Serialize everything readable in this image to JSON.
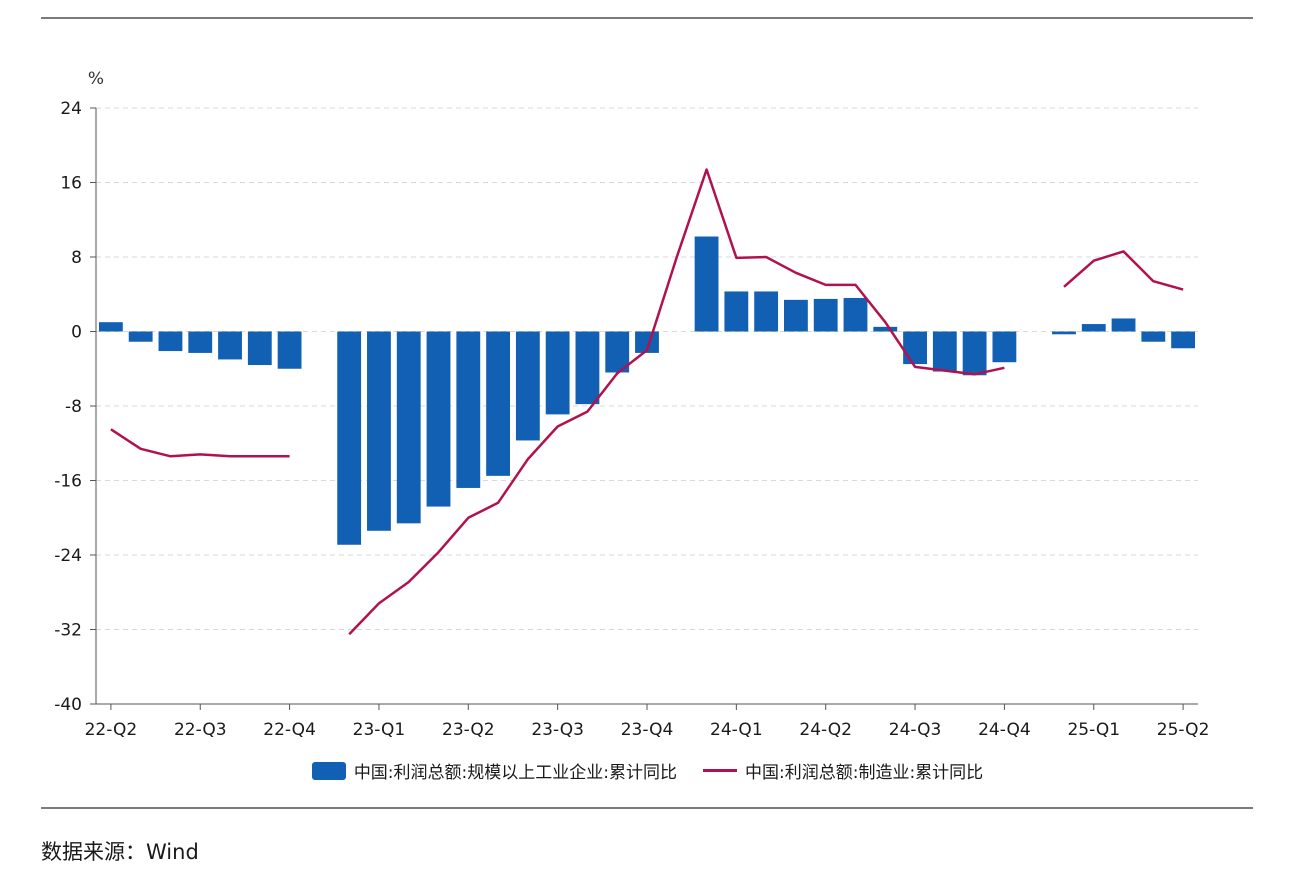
{
  "chart_data": {
    "type": "bar",
    "unit": "%",
    "ylim": [
      -40,
      24
    ],
    "y_ticks": [
      24,
      16,
      8,
      0,
      -8,
      -16,
      -24,
      -32,
      -40
    ],
    "x_tick_labels": [
      "22-Q2",
      "22-Q3",
      "22-Q4",
      "23-Q1",
      "23-Q2",
      "23-Q3",
      "23-Q4",
      "24-Q1",
      "24-Q2",
      "24-Q3",
      "24-Q4",
      "25-Q1",
      "25-Q2"
    ],
    "grid": true,
    "legend_position": "bottom",
    "series": [
      {
        "name": "中国:利润总额:规模以上工业企业:累计同比",
        "kind": "bar",
        "color": "#1260B3",
        "values": [
          1.0,
          -1.1,
          -2.1,
          -2.3,
          -3.0,
          -3.6,
          -4.0,
          null,
          -22.9,
          -21.4,
          -20.6,
          -18.8,
          -16.8,
          -15.5,
          -11.7,
          -8.9,
          -7.8,
          -4.4,
          -2.3,
          null,
          10.2,
          4.3,
          4.3,
          3.4,
          3.5,
          3.6,
          0.5,
          -3.5,
          -4.3,
          -4.7,
          -3.3,
          null,
          -0.3,
          0.8,
          1.4,
          -1.1,
          -1.8
        ]
      },
      {
        "name": "中国:利润总额:制造业:累计同比",
        "kind": "line",
        "color": "#B0124F",
        "values": [
          -10.5,
          -12.6,
          -13.4,
          -13.2,
          -13.4,
          -13.4,
          -13.4,
          null,
          -32.5,
          -29.2,
          -26.9,
          -23.7,
          -20.0,
          -18.4,
          -13.7,
          -10.2,
          -8.6,
          -4.5,
          -2.0,
          8.0,
          17.4,
          7.9,
          8.0,
          6.3,
          5.0,
          5.0,
          1.0,
          -3.8,
          -4.2,
          -4.6,
          -3.9,
          null,
          4.8,
          7.6,
          8.6,
          5.4,
          4.5
        ]
      }
    ]
  },
  "colors": {
    "bar": "#1260B3",
    "line": "#B0124F",
    "grid": "#d9d9d9",
    "axis": "#555555"
  },
  "footer": {
    "source": "数据来源：Wind"
  }
}
